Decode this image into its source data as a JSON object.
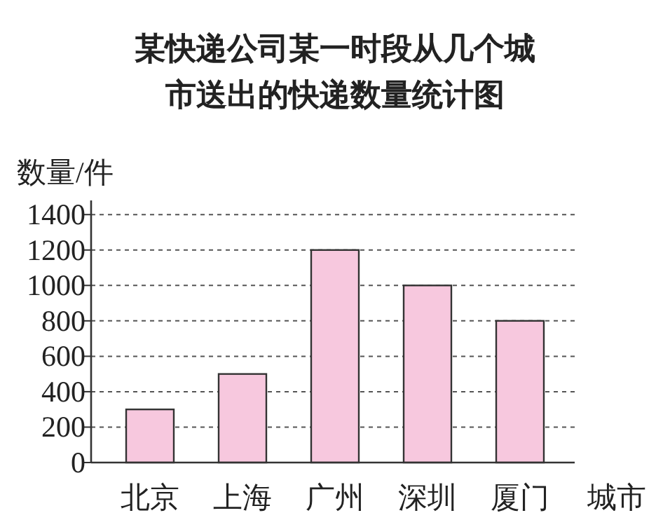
{
  "chart_data": {
    "type": "bar",
    "title": "某快递公司某一时段从几个城市送出的快递数量统计图",
    "ylabel": "数量/件",
    "xlabel": "城市",
    "categories": [
      "北京",
      "上海",
      "广州",
      "深圳",
      "厦门"
    ],
    "values": [
      300,
      500,
      1200,
      1000,
      800
    ],
    "color": "#f7c8de",
    "ylim": [
      0,
      1480
    ],
    "yticks": [
      0,
      200,
      400,
      600,
      800,
      1000,
      1200,
      1400
    ],
    "grid": "y"
  }
}
